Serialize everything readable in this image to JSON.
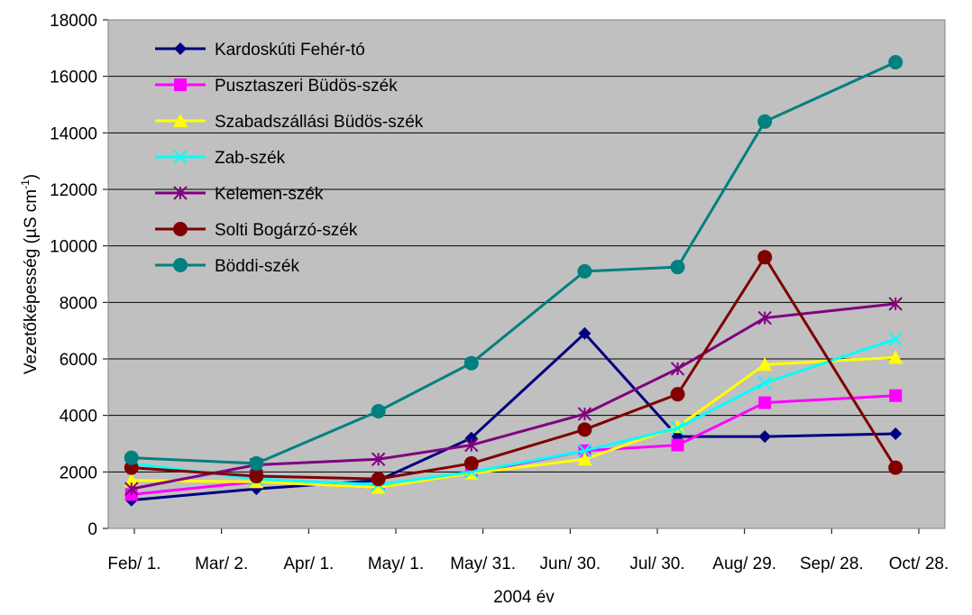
{
  "chart_data": {
    "type": "line",
    "x_label": "2004 év",
    "y_label": [
      "Vezetőképesség (µS cm",
      "-1",
      ")"
    ],
    "xlim": [
      23,
      311
    ],
    "xticks": [
      {
        "value": 32,
        "label": "Feb/ 1."
      },
      {
        "value": 62,
        "label": "Mar/ 2."
      },
      {
        "value": 92,
        "label": "Apr/ 1."
      },
      {
        "value": 122,
        "label": "May/ 1."
      },
      {
        "value": 152,
        "label": "May/ 31."
      },
      {
        "value": 182,
        "label": "Jun/ 30."
      },
      {
        "value": 212,
        "label": "Jul/ 30."
      },
      {
        "value": 242,
        "label": "Aug/ 29."
      },
      {
        "value": 272,
        "label": "Sep/ 28."
      },
      {
        "value": 302,
        "label": "Oct/ 28."
      }
    ],
    "ylim": [
      0,
      18000
    ],
    "yticks": [
      0,
      2000,
      4000,
      6000,
      8000,
      10000,
      12000,
      14000,
      16000,
      18000
    ],
    "grid": true,
    "legend": "upper-left",
    "x": [
      31,
      74,
      116,
      148,
      187,
      219,
      249,
      294
    ],
    "series": [
      {
        "name": "Kardoskúti Fehér-tó",
        "color": "#000080",
        "marker": "diamond",
        "values": [
          1000,
          1400,
          1700,
          3200,
          6900,
          3250,
          3250,
          3350
        ]
      },
      {
        "name": "Pusztaszeri Büdös-szék",
        "color": "#ff00ff",
        "marker": "square",
        "values": [
          1200,
          1650,
          1450,
          1950,
          2750,
          2950,
          4450,
          4700
        ]
      },
      {
        "name": "Szabadszállási Büdös-szék",
        "color": "#ffff00",
        "marker": "triangle",
        "values": [
          1700,
          1650,
          1450,
          1950,
          2450,
          3600,
          5800,
          6050
        ]
      },
      {
        "name": "Zab-szék",
        "color": "#00ffff",
        "marker": "x",
        "values": [
          2300,
          1750,
          1550,
          2000,
          2750,
          3550,
          5150,
          6700
        ]
      },
      {
        "name": "Kelemen-szék",
        "color": "#800080",
        "marker": "star",
        "values": [
          1400,
          2250,
          2450,
          2950,
          4050,
          5650,
          7450,
          7950
        ]
      },
      {
        "name": "Solti Bogárzó-szék",
        "color": "#800000",
        "marker": "circle",
        "values": [
          2150,
          1850,
          1750,
          2300,
          3500,
          4750,
          9600,
          2150
        ]
      },
      {
        "name": "Böddi-szék",
        "color": "#008080",
        "marker": "circle",
        "values": [
          2500,
          2300,
          4150,
          5850,
          9100,
          9250,
          14400,
          16500
        ]
      }
    ]
  }
}
